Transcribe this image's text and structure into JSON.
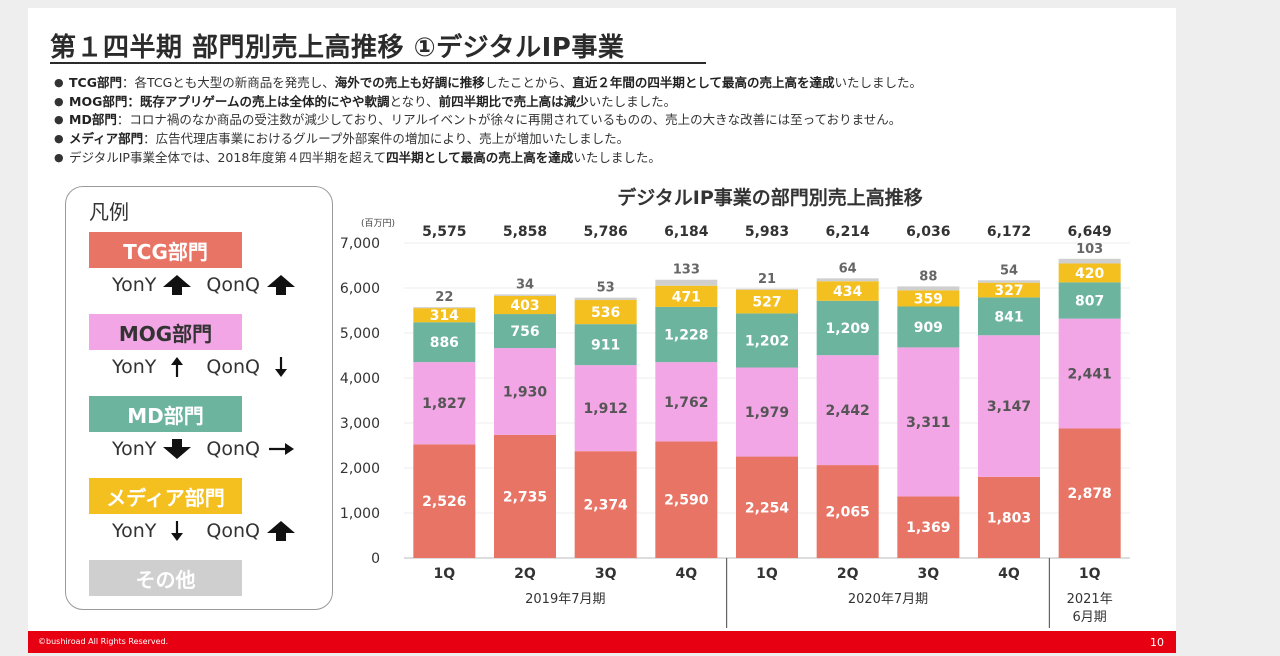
{
  "title": "第１四半期 部門別売上高推移 ①デジタルIP事業",
  "bullets": [
    [
      {
        "t": "TCG部門",
        "b": true
      },
      {
        "t": "：各TCGとも大型の新商品を発売し、"
      },
      {
        "t": "海外での売上も好調に推移",
        "b": true
      },
      {
        "t": "したことから、"
      },
      {
        "t": "直近２年間の四半期として最高の売上高を達成",
        "b": true
      },
      {
        "t": "いたしました。"
      }
    ],
    [
      {
        "t": "MOG部門",
        "b": true
      },
      {
        "t": "：既存アプリゲームの売上は全体的にやや軟調",
        "b": true
      },
      {
        "t": "となり、"
      },
      {
        "t": "前四半期比で売上高は減少",
        "b": true
      },
      {
        "t": "いたしました。"
      }
    ],
    [
      {
        "t": "MD部門",
        "b": true
      },
      {
        "t": "：コロナ禍のなか商品の受注数が減少しており、リアルイベントが徐々に再開されているものの、売上の大きな改善には至っておりません。"
      }
    ],
    [
      {
        "t": "メディア部門",
        "b": true
      },
      {
        "t": "：広告代理店事業におけるグループ外部案件の増加により、売上が増加いたしました。"
      }
    ],
    [
      {
        "t": "デジタルIP事業全体では、2018年度第４四半期を超えて"
      },
      {
        "t": "四半期として最高の売上高を達成",
        "b": true
      },
      {
        "t": "いたしました。"
      }
    ]
  ],
  "legend": {
    "title": "凡例",
    "items": [
      {
        "label": "TCG部門",
        "color": "#e87466",
        "text_color": "#ffffff",
        "yony": "YonY",
        "yony_arrow": "up-bold",
        "qonq": "QonQ",
        "qonq_arrow": "up-bold"
      },
      {
        "label": "MOG部門",
        "color": "#f2a6e6",
        "text_color": "#333333",
        "yony": "YonY",
        "yony_arrow": "up-thin",
        "qonq": "QonQ",
        "qonq_arrow": "down-thin"
      },
      {
        "label": "MD部門",
        "color": "#6db49e",
        "text_color": "#ffffff",
        "yony": "YonY",
        "yony_arrow": "down-bold",
        "qonq": "QonQ",
        "qonq_arrow": "right-thin"
      },
      {
        "label": "メディア部門",
        "color": "#f4c020",
        "text_color": "#ffffff",
        "yony": "YonY",
        "yony_arrow": "down-thin",
        "qonq": "QonQ",
        "qonq_arrow": "up-bold"
      },
      {
        "label": "その他",
        "color": "#cfcfcf",
        "text_color": "#ffffff"
      }
    ]
  },
  "chart_data": {
    "type": "bar",
    "stacked": true,
    "title": "デジタルIP事業の部門別売上高推移",
    "unit": "(百万円)",
    "ylim": [
      0,
      7000
    ],
    "yticks": [
      0,
      1000,
      2000,
      3000,
      4000,
      5000,
      6000,
      7000
    ],
    "ytick_labels": [
      "0",
      "1,000",
      "2,000",
      "3,000",
      "4,000",
      "5,000",
      "6,000",
      "7,000"
    ],
    "categories": [
      "1Q",
      "2Q",
      "3Q",
      "4Q",
      "1Q",
      "2Q",
      "3Q",
      "4Q",
      "1Q"
    ],
    "groups": [
      {
        "label": "2019年7月期",
        "span": [
          0,
          3
        ]
      },
      {
        "label": "2020年7月期",
        "span": [
          4,
          7
        ]
      },
      {
        "label": "2021年\n6月期",
        "span": [
          8,
          8
        ]
      }
    ],
    "totals": [
      5575,
      5858,
      5786,
      6184,
      5983,
      6214,
      6036,
      6172,
      6649
    ],
    "total_labels": [
      "5,575",
      "5,858",
      "5,786",
      "6,184",
      "5,983",
      "6,214",
      "6,036",
      "6,172",
      "6,649"
    ],
    "series": [
      {
        "name": "TCG部門",
        "color": "#e87466",
        "label_color": "#ffffff",
        "values": [
          2526,
          2735,
          2374,
          2590,
          2254,
          2065,
          1369,
          1803,
          2878
        ],
        "labels": [
          "2,526",
          "2,735",
          "2,374",
          "2,590",
          "2,254",
          "2,065",
          "1,369",
          "1,803",
          "2,878"
        ]
      },
      {
        "name": "MOG部門",
        "color": "#f2a6e6",
        "label_color": "#555555",
        "values": [
          1827,
          1930,
          1912,
          1762,
          1979,
          2442,
          3311,
          3147,
          2441
        ],
        "labels": [
          "1,827",
          "1,930",
          "1,912",
          "1,762",
          "1,979",
          "2,442",
          "3,311",
          "3,147",
          "2,441"
        ]
      },
      {
        "name": "MD部門",
        "color": "#6db49e",
        "label_color": "#ffffff",
        "values": [
          886,
          756,
          911,
          1228,
          1202,
          1209,
          909,
          841,
          807
        ],
        "labels": [
          "886",
          "756",
          "911",
          "1,228",
          "1,202",
          "1,209",
          "909",
          "841",
          "807"
        ]
      },
      {
        "name": "メディア部門",
        "color": "#f4c020",
        "label_color": "#ffffff",
        "values": [
          314,
          403,
          536,
          471,
          527,
          434,
          359,
          327,
          420
        ],
        "labels": [
          "314",
          "403",
          "536",
          "471",
          "527",
          "434",
          "359",
          "327",
          "420"
        ]
      },
      {
        "name": "その他",
        "color": "#cfcfcf",
        "label_color": "#666666",
        "values": [
          22,
          34,
          53,
          133,
          21,
          64,
          88,
          54,
          103
        ],
        "labels": [
          "22",
          "34",
          "53",
          "133",
          "21",
          "64",
          "88",
          "54",
          "103"
        ]
      }
    ]
  },
  "footer": {
    "copyright": "©bushiroad All Rights Reserved.",
    "page": "10"
  }
}
